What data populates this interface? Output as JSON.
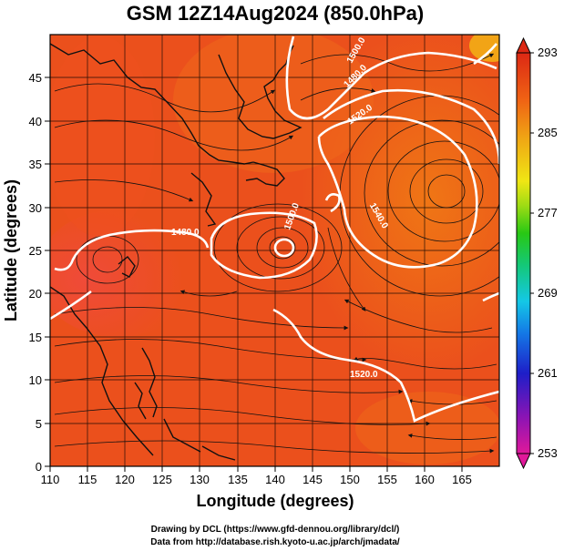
{
  "title": "GSM 12Z14Aug2024 (850.0hPa)",
  "x_axis": {
    "label": "Longitude (degrees)",
    "ticks": [
      "110",
      "115",
      "120",
      "125",
      "130",
      "135",
      "140",
      "145",
      "150",
      "155",
      "160",
      "165"
    ]
  },
  "y_axis": {
    "label": "Latitude  (degrees)",
    "ticks": [
      "0",
      "5",
      "10",
      "15",
      "20",
      "25",
      "30",
      "35",
      "40",
      "45"
    ]
  },
  "colorbar": {
    "ticks": [
      "253",
      "261",
      "269",
      "277",
      "285",
      "293"
    ],
    "colors": [
      "#e0189a",
      "#6a14b4",
      "#1e1ec8",
      "#1478e6",
      "#14c8e6",
      "#14c878",
      "#28c814",
      "#a0dc14",
      "#f0e614",
      "#f0aa14",
      "#f06414",
      "#e63214",
      "#dc2814"
    ]
  },
  "contour_labels": [
    "1480.0",
    "1500.0",
    "1480.0",
    "1520.0",
    "1540.0",
    "1520.0",
    "1500.0"
  ],
  "credits": {
    "line1": "Drawing by DCL (https://www.gfd-dennou.org/library/dcl/)",
    "line2": "Data from http://database.rish.kyoto-u.ac.jp/arch/jmadata/"
  },
  "chart_data": {
    "type": "heatmap",
    "title": "GSM 12Z14Aug2024 (850.0hPa)",
    "xlabel": "Longitude (degrees)",
    "ylabel": "Latitude  (degrees)",
    "xlim": [
      110,
      170
    ],
    "ylim": [
      0,
      50
    ],
    "x_ticks": [
      110,
      115,
      120,
      125,
      130,
      135,
      140,
      145,
      150,
      155,
      160,
      165
    ],
    "y_ticks": [
      0,
      5,
      10,
      15,
      20,
      25,
      30,
      35,
      40,
      45
    ],
    "colorbar_range": [
      253,
      293
    ],
    "colorbar_ticks": [
      253,
      261,
      269,
      277,
      285,
      293
    ],
    "grid": true,
    "overlays": [
      "temperature shading",
      "streamlines",
      "geopotential height contours"
    ],
    "features": [
      {
        "kind": "cyclone",
        "lon": 141,
        "lat": 27.5
      },
      {
        "kind": "anticyclone",
        "lon": 162,
        "lat": 34.5
      },
      {
        "kind": "high",
        "lon": 118,
        "lat": 26
      }
    ],
    "contour_values": [
      1480.0,
      1500.0,
      1520.0,
      1540.0
    ]
  }
}
